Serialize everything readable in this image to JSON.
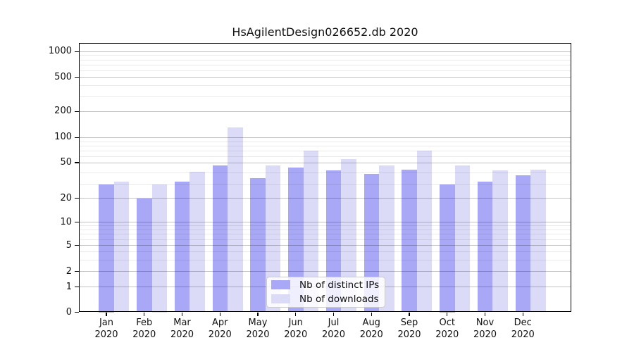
{
  "title": "HsAgilentDesign026652.db 2020",
  "legend": {
    "items": [
      {
        "label": "Nb of distinct IPs",
        "series": "ips"
      },
      {
        "label": "Nb of downloads",
        "series": "downloads"
      }
    ]
  },
  "colors": {
    "ips_bar": "#a8a8f6",
    "downloads_bar": "#dbdbf8",
    "axis": "#000000",
    "grid_major": "#c4c4c4",
    "grid_minor": "#ededed",
    "legend_border": "#cbcbcb"
  },
  "chart_data": {
    "type": "bar",
    "title": "HsAgilentDesign026652.db 2020",
    "months": [
      "Jan",
      "Feb",
      "Mar",
      "Apr",
      "May",
      "Jun",
      "Jul",
      "Aug",
      "Sep",
      "Oct",
      "Nov",
      "Dec"
    ],
    "year": "2020",
    "series": [
      {
        "name": "Nb of distinct IPs",
        "values": [
          30,
          20,
          32,
          47,
          35,
          45,
          42,
          39,
          43,
          30,
          32,
          38
        ]
      },
      {
        "name": "Nb of downloads",
        "values": [
          32,
          30,
          41,
          130,
          47,
          70,
          56,
          47,
          71,
          47,
          42,
          43
        ]
      }
    ],
    "xlabel": "",
    "ylabel": "",
    "y_scale": "symlog",
    "y_ticks": [
      0,
      1,
      2,
      5,
      10,
      20,
      50,
      100,
      200,
      500,
      1000
    ],
    "y_minor_ticks": [
      3,
      4,
      6,
      7,
      8,
      9,
      30,
      40,
      60,
      70,
      80,
      90,
      300,
      400,
      600,
      700,
      800,
      900
    ],
    "ylim": [
      0,
      1300
    ],
    "grid": "horizontal",
    "legend_position": "lower center"
  }
}
